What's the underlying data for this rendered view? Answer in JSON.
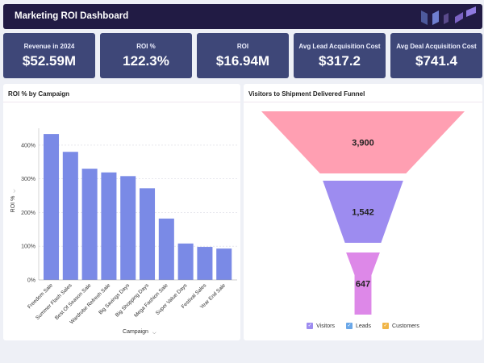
{
  "header": {
    "title": "Marketing ROI Dashboard"
  },
  "kpis": [
    {
      "label": "Revenue in 2024",
      "value": "$52.59M"
    },
    {
      "label": "ROI %",
      "value": "122.3%"
    },
    {
      "label": "ROI",
      "value": "$16.94M"
    },
    {
      "label": "Avg Lead Acquisition Cost",
      "value": "$317.2"
    },
    {
      "label": "Avg Deal Acquisition Cost",
      "value": "$741.4"
    }
  ],
  "bar_panel": {
    "title": "ROI % by Campaign",
    "ylabel_icon": "chevron-down-icon",
    "xlabel_icon": "chevron-down-icon"
  },
  "funnel_panel": {
    "title": "Visitors to Shipment Delivered Funnel"
  },
  "legend_check": "✓",
  "chart_data": [
    {
      "type": "bar",
      "title": "ROI % by Campaign",
      "xlabel": "Campaign",
      "ylabel": "ROI %",
      "categories": [
        "Freedom Sale",
        "Summer Flash Sales",
        "Best Of Season Sale",
        "Wardrobe Refresh Sale",
        "Big Savings Days",
        "Big Shopping Days",
        "Mega Fashion Sale",
        "Super Value Days",
        "Festival Sales",
        "Year End Sale"
      ],
      "values": [
        433,
        380,
        330,
        319,
        308,
        272,
        182,
        108,
        98,
        93
      ],
      "ylim": [
        0,
        450
      ],
      "yticks": [
        0,
        100,
        200,
        300,
        400
      ],
      "ytick_labels": [
        "0%",
        "100%",
        "200%",
        "300%",
        "400%"
      ],
      "color": "#7a8ae6",
      "grid": true
    },
    {
      "type": "funnel",
      "title": "Visitors to Shipment Delivered Funnel",
      "stages": [
        {
          "name": "Visitors",
          "value": 3900,
          "label": "3,900",
          "color": "#ff9fb2"
        },
        {
          "name": "Leads",
          "value": 1542,
          "label": "1,542",
          "color": "#9d8cf0"
        },
        {
          "name": "Customers",
          "value": 647,
          "label": "647",
          "color": "#dd88e8"
        }
      ],
      "legend": [
        {
          "name": "Visitors",
          "color": "#9d8cf0"
        },
        {
          "name": "Leads",
          "color": "#6aa7e8"
        },
        {
          "name": "Customers",
          "color": "#f0b547"
        }
      ]
    }
  ]
}
